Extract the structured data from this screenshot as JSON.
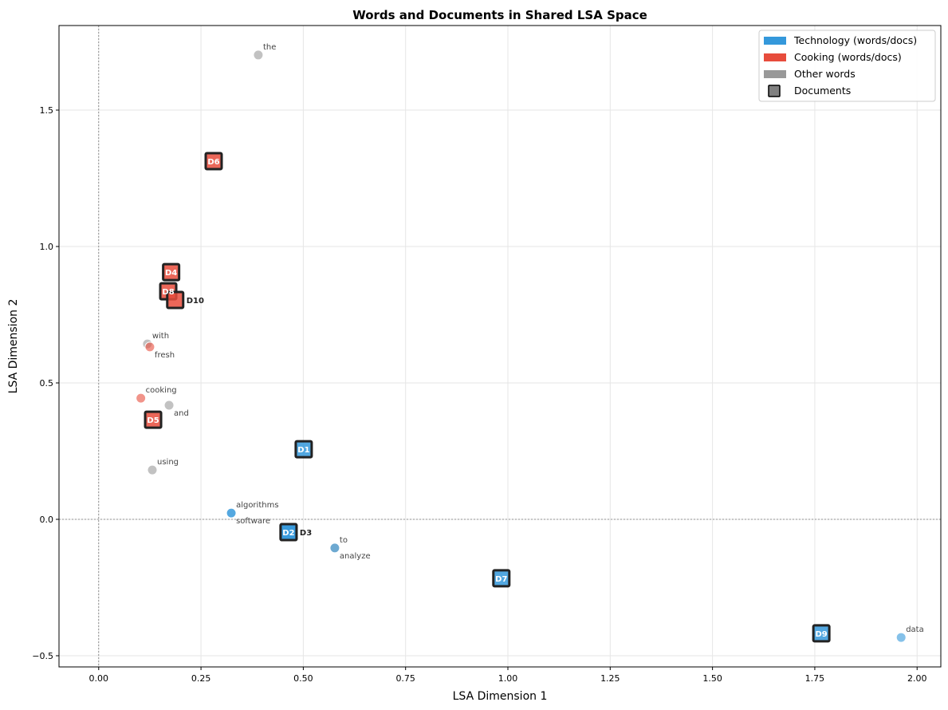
{
  "chart_data": {
    "type": "scatter",
    "title": "Words and Documents in Shared LSA Space",
    "xlabel": "LSA Dimension 1",
    "ylabel": "LSA Dimension 2",
    "xlim": [
      -0.097,
      2.058
    ],
    "ylim": [
      -0.541,
      1.81
    ],
    "xticks": [
      0.0,
      0.25,
      0.5,
      0.75,
      1.0,
      1.25,
      1.5,
      1.75,
      2.0
    ],
    "xtick_labels": [
      "0.00",
      "0.25",
      "0.50",
      "0.75",
      "1.00",
      "1.25",
      "1.50",
      "1.75",
      "2.00"
    ],
    "yticks": [
      -0.5,
      0.0,
      0.5,
      1.0,
      1.5
    ],
    "ytick_labels": [
      "−0.5",
      "0.0",
      "0.5",
      "1.0",
      "1.5"
    ],
    "grid": true,
    "reference_lines": {
      "x": 0,
      "y": 0
    },
    "legend_placement": "top-right",
    "colors": {
      "technology": "#3498db",
      "cooking": "#e74c3c",
      "other": "#999999"
    },
    "legend": [
      {
        "label": "Technology (words/docs)",
        "group": "technology",
        "marker": "patch"
      },
      {
        "label": "Cooking (words/docs)",
        "group": "cooking",
        "marker": "patch"
      },
      {
        "label": "Other words",
        "group": "other",
        "marker": "patch"
      },
      {
        "label": "Documents",
        "group": "doc",
        "marker": "square"
      }
    ],
    "words": [
      {
        "label": "the",
        "x": 0.39,
        "y": 1.702,
        "group": "other"
      },
      {
        "label": "with",
        "x": 0.119,
        "y": 0.643,
        "group": "other"
      },
      {
        "label": "fresh",
        "x": 0.125,
        "y": 0.632,
        "group": "cooking"
      },
      {
        "label": "cooking",
        "x": 0.103,
        "y": 0.444,
        "group": "cooking"
      },
      {
        "label": "and",
        "x": 0.172,
        "y": 0.418,
        "group": "other"
      },
      {
        "label": "using",
        "x": 0.131,
        "y": 0.181,
        "group": "other"
      },
      {
        "label": "algorithms",
        "x": 0.324,
        "y": 0.023,
        "group": "technology"
      },
      {
        "label": "software",
        "x": 0.324,
        "y": 0.023,
        "group": "technology"
      },
      {
        "label": "to",
        "x": 0.577,
        "y": -0.105,
        "group": "other"
      },
      {
        "label": "analyze",
        "x": 0.577,
        "y": -0.105,
        "group": "technology"
      },
      {
        "label": "data",
        "x": 1.961,
        "y": -0.433,
        "group": "technology"
      }
    ],
    "documents": [
      {
        "label": "D1",
        "x": 0.501,
        "y": 0.257,
        "group": "technology"
      },
      {
        "label": "D2",
        "x": 0.464,
        "y": -0.047,
        "group": "technology"
      },
      {
        "label": "D3",
        "x": 0.464,
        "y": -0.047,
        "group": "technology"
      },
      {
        "label": "D4",
        "x": 0.177,
        "y": 0.906,
        "group": "cooking"
      },
      {
        "label": "D5",
        "x": 0.133,
        "y": 0.365,
        "group": "cooking"
      },
      {
        "label": "D6",
        "x": 0.281,
        "y": 1.313,
        "group": "cooking"
      },
      {
        "label": "D7",
        "x": 0.984,
        "y": -0.216,
        "group": "technology"
      },
      {
        "label": "D8",
        "x": 0.17,
        "y": 0.836,
        "group": "cooking"
      },
      {
        "label": "D9",
        "x": 1.766,
        "y": -0.418,
        "group": "technology"
      },
      {
        "label": "D10",
        "x": 0.187,
        "y": 0.804,
        "group": "cooking"
      }
    ]
  }
}
